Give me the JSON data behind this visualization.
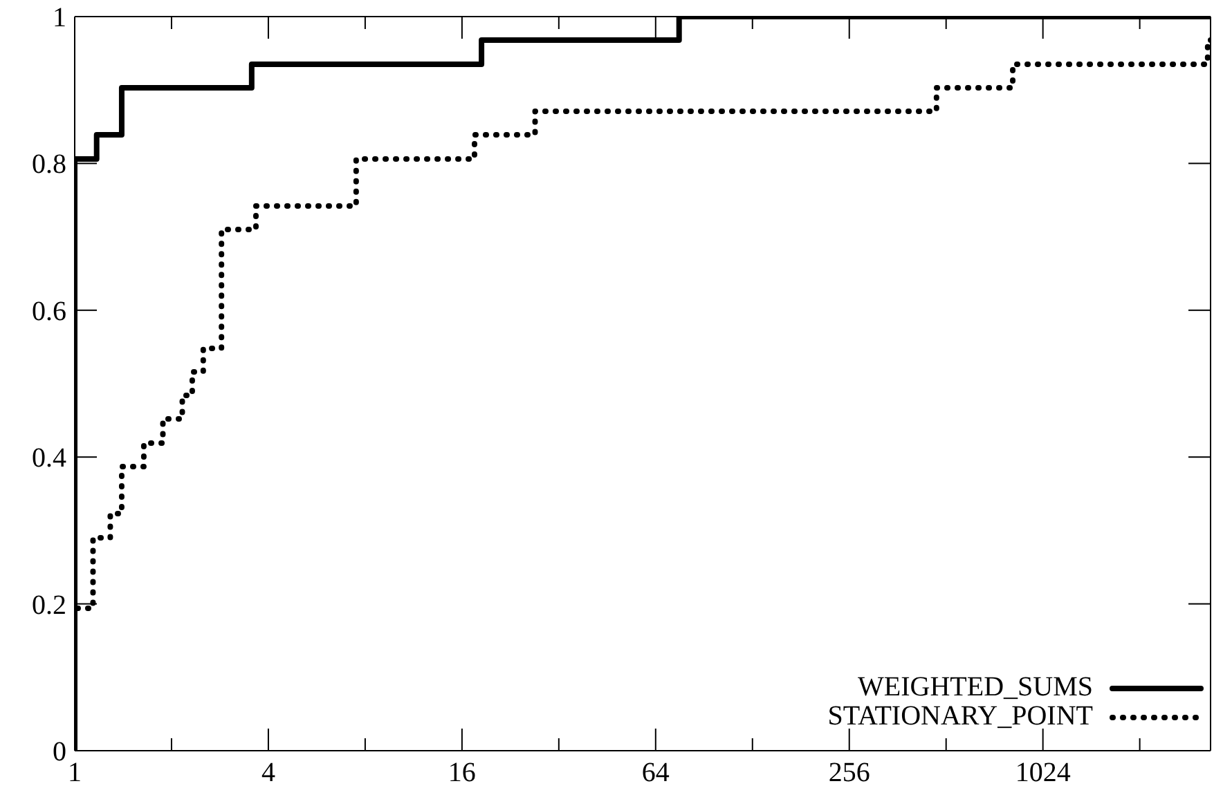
{
  "chart_data": {
    "type": "step",
    "series": [
      {
        "name": "WEIGHTED_SUMS",
        "color": "#000000",
        "line_style": "solid",
        "x": [
          1,
          1,
          1.17,
          1.4,
          3.55,
          18.4,
          75.7,
          3400
        ],
        "values": [
          0,
          0.806,
          0.839,
          0.903,
          0.935,
          0.968,
          1,
          1
        ]
      },
      {
        "name": "STATIONARY_POINT",
        "color": "#000000",
        "line_style": "dotted",
        "x": [
          1,
          1,
          1.14,
          1.29,
          1.4,
          1.64,
          1.88,
          2.16,
          2.32,
          2.51,
          2.86,
          3.66,
          7.5,
          17.5,
          27,
          478,
          825,
          3330,
          3400
        ],
        "values": [
          0,
          0.194,
          0.29,
          0.323,
          0.387,
          0.419,
          0.452,
          0.484,
          0.516,
          0.548,
          0.71,
          0.742,
          0.806,
          0.839,
          0.871,
          0.903,
          0.935,
          0.968,
          0.968
        ]
      }
    ],
    "log": "x",
    "xlim": [
      1,
      3400
    ],
    "ylim": [
      0,
      1
    ],
    "xticks": [
      1,
      {
        "value": 2,
        "label": null
      },
      4,
      {
        "value": 8,
        "label": null
      },
      16,
      {
        "value": 32,
        "label": null
      },
      64,
      {
        "value": 128,
        "label": null
      },
      256,
      {
        "value": 512,
        "label": null
      },
      1024,
      {
        "value": 2048,
        "label": null
      }
    ],
    "yticks": [
      0,
      0.2,
      0.4,
      0.6,
      0.8,
      1
    ],
    "legend": "bottom right"
  }
}
